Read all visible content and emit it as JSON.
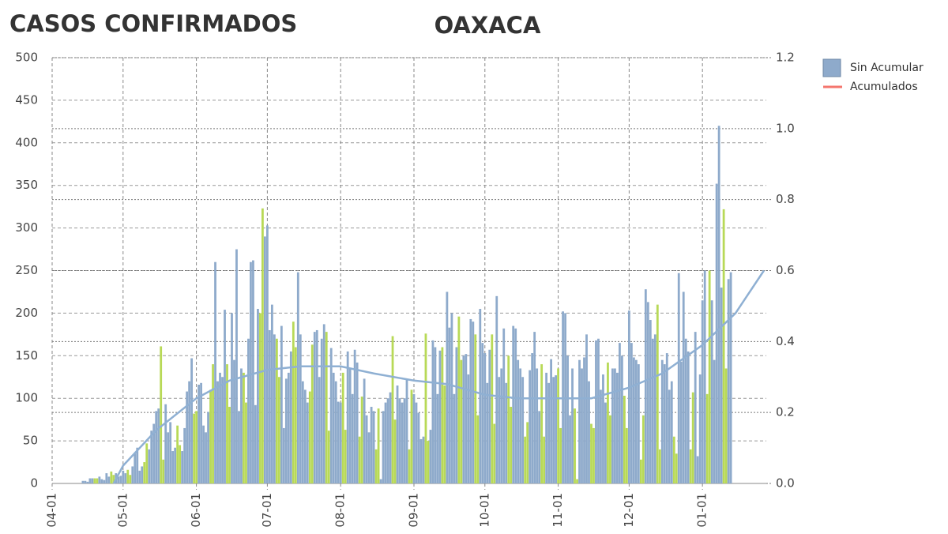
{
  "chart_data": {
    "type": "bar",
    "title": "CASOS CONFIRMADOS",
    "subtitle": "OAXACA",
    "xlim": [
      "04-01",
      "01-28"
    ],
    "xticks": [
      "04-01",
      "05-01",
      "06-01",
      "07-01",
      "08-01",
      "09-01",
      "10-01",
      "11-01",
      "12-01",
      "01-01"
    ],
    "ylim": [
      0,
      500
    ],
    "yticks": [
      0,
      50,
      100,
      150,
      200,
      250,
      300,
      350,
      400,
      450,
      500
    ],
    "y2lim": [
      0,
      1.2
    ],
    "y2ticks": [
      {
        "value": 0,
        "label": "0.0"
      },
      0.2,
      0.4,
      0.6,
      0.8,
      {
        "value": 1,
        "label": "1.0"
      },
      1.2
    ],
    "grid": true,
    "series": [
      {
        "name": "Sin Acumular",
        "color": "#8eaacb",
        "x": [
          "04-14",
          "04-15",
          "04-16",
          "04-17",
          "04-18",
          "04-21",
          "04-22",
          "04-23",
          "04-24",
          "04-25",
          "04-28",
          "04-29",
          "04-30",
          "05-01",
          "05-02",
          "05-05",
          "05-06",
          "05-07",
          "05-08",
          "05-09",
          "05-12",
          "05-13",
          "05-14",
          "05-15",
          "05-16",
          "05-19",
          "05-20",
          "05-21",
          "05-22",
          "05-23",
          "05-26",
          "05-27",
          "05-28",
          "05-29",
          "05-30",
          "06-02",
          "06-03",
          "06-04",
          "06-05",
          "06-06",
          "06-09",
          "06-10",
          "06-11",
          "06-12",
          "06-13",
          "06-16",
          "06-17",
          "06-18",
          "06-19",
          "06-20",
          "06-23",
          "06-24",
          "06-25",
          "06-26",
          "06-27",
          "06-30",
          "07-01",
          "07-02",
          "07-03",
          "07-04",
          "07-07",
          "07-08",
          "07-09",
          "07-10",
          "07-11",
          "07-14",
          "07-15",
          "07-16",
          "07-17",
          "07-18",
          "07-21",
          "07-22",
          "07-23",
          "07-24",
          "07-25",
          "07-28",
          "07-29",
          "07-30",
          "07-31",
          "08-01",
          "08-04",
          "08-05",
          "08-06",
          "08-07",
          "08-08",
          "08-11",
          "08-12",
          "08-13",
          "08-14",
          "08-15",
          "08-18",
          "08-19",
          "08-20",
          "08-21",
          "08-22",
          "08-25",
          "08-26",
          "08-27",
          "08-28",
          "08-29",
          "09-01",
          "09-02",
          "09-03",
          "09-04",
          "09-05",
          "09-08",
          "09-09",
          "09-10",
          "09-11",
          "09-12",
          "09-15",
          "09-16",
          "09-17",
          "09-18",
          "09-19",
          "09-22",
          "09-23",
          "09-24",
          "09-25",
          "09-26",
          "09-29",
          "09-30",
          "10-01",
          "10-02",
          "10-03",
          "10-06",
          "10-07",
          "10-08",
          "10-09",
          "10-10",
          "10-13",
          "10-14",
          "10-15",
          "10-16",
          "10-17",
          "10-20",
          "10-21",
          "10-22",
          "10-23",
          "10-24",
          "10-27",
          "10-28",
          "10-29",
          "10-30",
          "10-31",
          "11-03",
          "11-04",
          "11-05",
          "11-06",
          "11-07",
          "11-10",
          "11-11",
          "11-12",
          "11-13",
          "11-14",
          "11-17",
          "11-18",
          "11-19",
          "11-20",
          "11-21",
          "11-24",
          "11-25",
          "11-26",
          "11-27",
          "11-28",
          "12-01",
          "12-02",
          "12-03",
          "12-04",
          "12-05",
          "12-08",
          "12-09",
          "12-10",
          "12-11",
          "12-12",
          "12-15",
          "12-16",
          "12-17",
          "12-18",
          "12-19",
          "12-22",
          "12-23",
          "12-24",
          "12-25",
          "12-26",
          "12-29",
          "12-30",
          "12-31",
          "01-01",
          "01-02",
          "01-05",
          "01-06",
          "01-07",
          "01-08",
          "01-09",
          "01-12",
          "01-13"
        ],
        "values": [
          3,
          3,
          2,
          6,
          6,
          8,
          5,
          4,
          12,
          8,
          12,
          8,
          9,
          15,
          12,
          20,
          35,
          42,
          15,
          20,
          40,
          62,
          70,
          85,
          88,
          93,
          60,
          72,
          38,
          42,
          38,
          65,
          108,
          120,
          147,
          116,
          118,
          68,
          60,
          84,
          260,
          120,
          130,
          125,
          204,
          200,
          145,
          275,
          85,
          135,
          170,
          260,
          262,
          92,
          205,
          290,
          303,
          180,
          210,
          175,
          185,
          65,
          123,
          130,
          155,
          248,
          175,
          120,
          110,
          95,
          178,
          180,
          125,
          170,
          187,
          159,
          130,
          120,
          96,
          95,
          155,
          135,
          105,
          157,
          142,
          123,
          80,
          60,
          90,
          85,
          5,
          85,
          95,
          100,
          107,
          115,
          100,
          95,
          100,
          122,
          105,
          95,
          83,
          52,
          55,
          63,
          168,
          160,
          105,
          156,
          225,
          183,
          200,
          105,
          160,
          150,
          152,
          128,
          193,
          190,
          205,
          165,
          153,
          118,
          157,
          220,
          125,
          135,
          182,
          118,
          185,
          182,
          145,
          135,
          125,
          133,
          153,
          178,
          135,
          85,
          130,
          118,
          146,
          125,
          127,
          202,
          200,
          150,
          80,
          135,
          145,
          135,
          148,
          175,
          120,
          168,
          170,
          110,
          128,
          95,
          135,
          135,
          130,
          165,
          150,
          203,
          165,
          148,
          145,
          140,
          228,
          213,
          192,
          170,
          175,
          145,
          140,
          153,
          110,
          120,
          247,
          143,
          225,
          170,
          155,
          178,
          32,
          128,
          215,
          250,
          215,
          145,
          352,
          420,
          230,
          240,
          248
        ]
      },
      {
        "color": "#b8d957",
        "x": [
          "04-12",
          "04-13",
          "04-19",
          "04-20",
          "04-26",
          "04-27",
          "05-03",
          "05-04",
          "05-10",
          "05-11",
          "05-17",
          "05-18",
          "05-24",
          "05-25",
          "05-31",
          "06-01",
          "06-07",
          "06-08",
          "06-14",
          "06-15",
          "06-21",
          "06-22",
          "06-28",
          "06-29",
          "07-05",
          "07-06",
          "07-12",
          "07-13",
          "07-19",
          "07-20",
          "07-26",
          "07-27",
          "08-02",
          "08-03",
          "08-09",
          "08-10",
          "08-16",
          "08-17",
          "08-23",
          "08-24",
          "08-30",
          "08-31",
          "09-06",
          "09-07",
          "09-13",
          "09-14",
          "09-20",
          "09-21",
          "09-27",
          "09-28",
          "10-04",
          "10-05",
          "10-11",
          "10-12",
          "10-18",
          "10-19",
          "10-25",
          "10-26",
          "11-01",
          "11-02",
          "11-08",
          "11-09",
          "11-15",
          "11-16",
          "11-22",
          "11-23",
          "11-29",
          "11-30",
          "12-06",
          "12-07",
          "12-13",
          "12-14",
          "12-20",
          "12-21",
          "12-27",
          "12-28",
          "01-03",
          "01-04",
          "01-10",
          "01-11"
        ],
        "values": [
          0,
          0,
          6,
          6,
          14,
          10,
          16,
          10,
          25,
          47,
          161,
          28,
          68,
          45,
          82,
          85,
          110,
          140,
          140,
          90,
          130,
          95,
          200,
          323,
          170,
          125,
          190,
          160,
          108,
          163,
          178,
          62,
          130,
          63,
          55,
          102,
          40,
          88,
          173,
          75,
          40,
          110,
          176,
          50,
          160,
          115,
          196,
          145,
          175,
          80,
          175,
          70,
          150,
          90,
          55,
          72,
          140,
          55,
          135,
          65,
          88,
          5,
          70,
          65,
          142,
          80,
          103,
          65,
          28,
          80,
          210,
          40,
          55,
          35,
          40,
          107,
          105,
          250,
          322,
          135
        ]
      },
      {
        "name": "Acumulados",
        "type": "line",
        "axis": "y2",
        "color": "#f4766e",
        "line_color": "#8fb0d3",
        "x": [
          "04-27",
          "05-01",
          "05-15",
          "06-01",
          "06-15",
          "07-01",
          "07-15",
          "08-01",
          "08-15",
          "09-01",
          "09-15",
          "10-01",
          "10-15",
          "11-01",
          "11-15",
          "12-01",
          "12-15",
          "01-01",
          "01-15",
          "01-27"
        ],
        "values": [
          0,
          0.05,
          0.15,
          0.24,
          0.29,
          0.32,
          0.33,
          0.33,
          0.31,
          0.29,
          0.28,
          0.25,
          0.24,
          0.24,
          0.24,
          0.27,
          0.31,
          0.39,
          0.48,
          0.6
        ]
      }
    ]
  }
}
